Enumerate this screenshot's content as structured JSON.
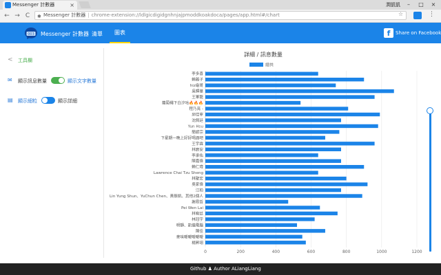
{
  "browser": {
    "tab_title": "Messenger 計數器",
    "tab_close": "×",
    "profile_label": "潤凱凱",
    "min": "–",
    "max": "□",
    "close": "×",
    "back": "←",
    "forward": "→",
    "reload": "C",
    "site_name": "Messenger 計數器",
    "separator": "|",
    "url": "chrome-extension://ldlgicdigidgnhnjajpmoddkoakdoca/pages/app.html#/chart",
    "star": "☆",
    "menu": "⋮"
  },
  "app": {
    "title": "Messenger 計數器",
    "nav": {
      "list": "清單",
      "chart": "圖表"
    },
    "share_icon": "f",
    "share_label": "Share on Facebook",
    "accent": "#1b84e8",
    "toggle_on": "#4caf50",
    "toggle_on_blue": "#1b84e8"
  },
  "sidebar": {
    "back": "<",
    "title": "工具欄",
    "row1": {
      "icon": "✉",
      "left": "顯示訊息數量",
      "right": "顯示文字數量"
    },
    "row2": {
      "icon": "▤",
      "left": "顯示細粒",
      "right": "顯示詳細"
    }
  },
  "footer": {
    "text": "Github ♟ Author ALiangLiang"
  },
  "chart_data": {
    "type": "bar",
    "orientation": "horizontal",
    "title": "詳細 / 訊息數量",
    "legend": [
      "總共"
    ],
    "legend_position": "top",
    "xlim": [
      0,
      1200
    ],
    "xticks": [
      0,
      200,
      400,
      600,
      800,
      1000,
      1200
    ],
    "grid": true,
    "bar_color": "#1b84e8",
    "categories": [
      "李多喜",
      "賴雅子",
      "hiz龜哥",
      "吳輝華",
      "王軍龍",
      "蘿蔔繩下白汐咕🔥🔥🔥",
      "程乃亮 -",
      "邱佳寧",
      "沈佩廷",
      "Yun Hsu",
      "簡諺宗",
      "下星期一晚上好好喝酒吧",
      "王宇霖",
      "林宸安",
      "李承佑",
      "陳嘉偉",
      "賴仁瑋",
      "Lawrence Chai Tzu Sheng",
      "林聖宏",
      "吳家偉",
      "江柏",
      "Lin Yung Shun、YuChun Chen、黃振凱、其他2個人",
      "謝易哲",
      "Pei Wen Lai",
      "林宥廷",
      "林冠宇",
      "明靜、凱儀電腦",
      "陳佳",
      "麥味曖曖曖曖曖",
      "楊昇翊"
    ],
    "values": [
      640,
      900,
      740,
      1070,
      960,
      540,
      810,
      990,
      770,
      980,
      760,
      680,
      960,
      770,
      640,
      770,
      900,
      640,
      800,
      920,
      770,
      890,
      470,
      650,
      750,
      620,
      520,
      680,
      550,
      570
    ]
  }
}
